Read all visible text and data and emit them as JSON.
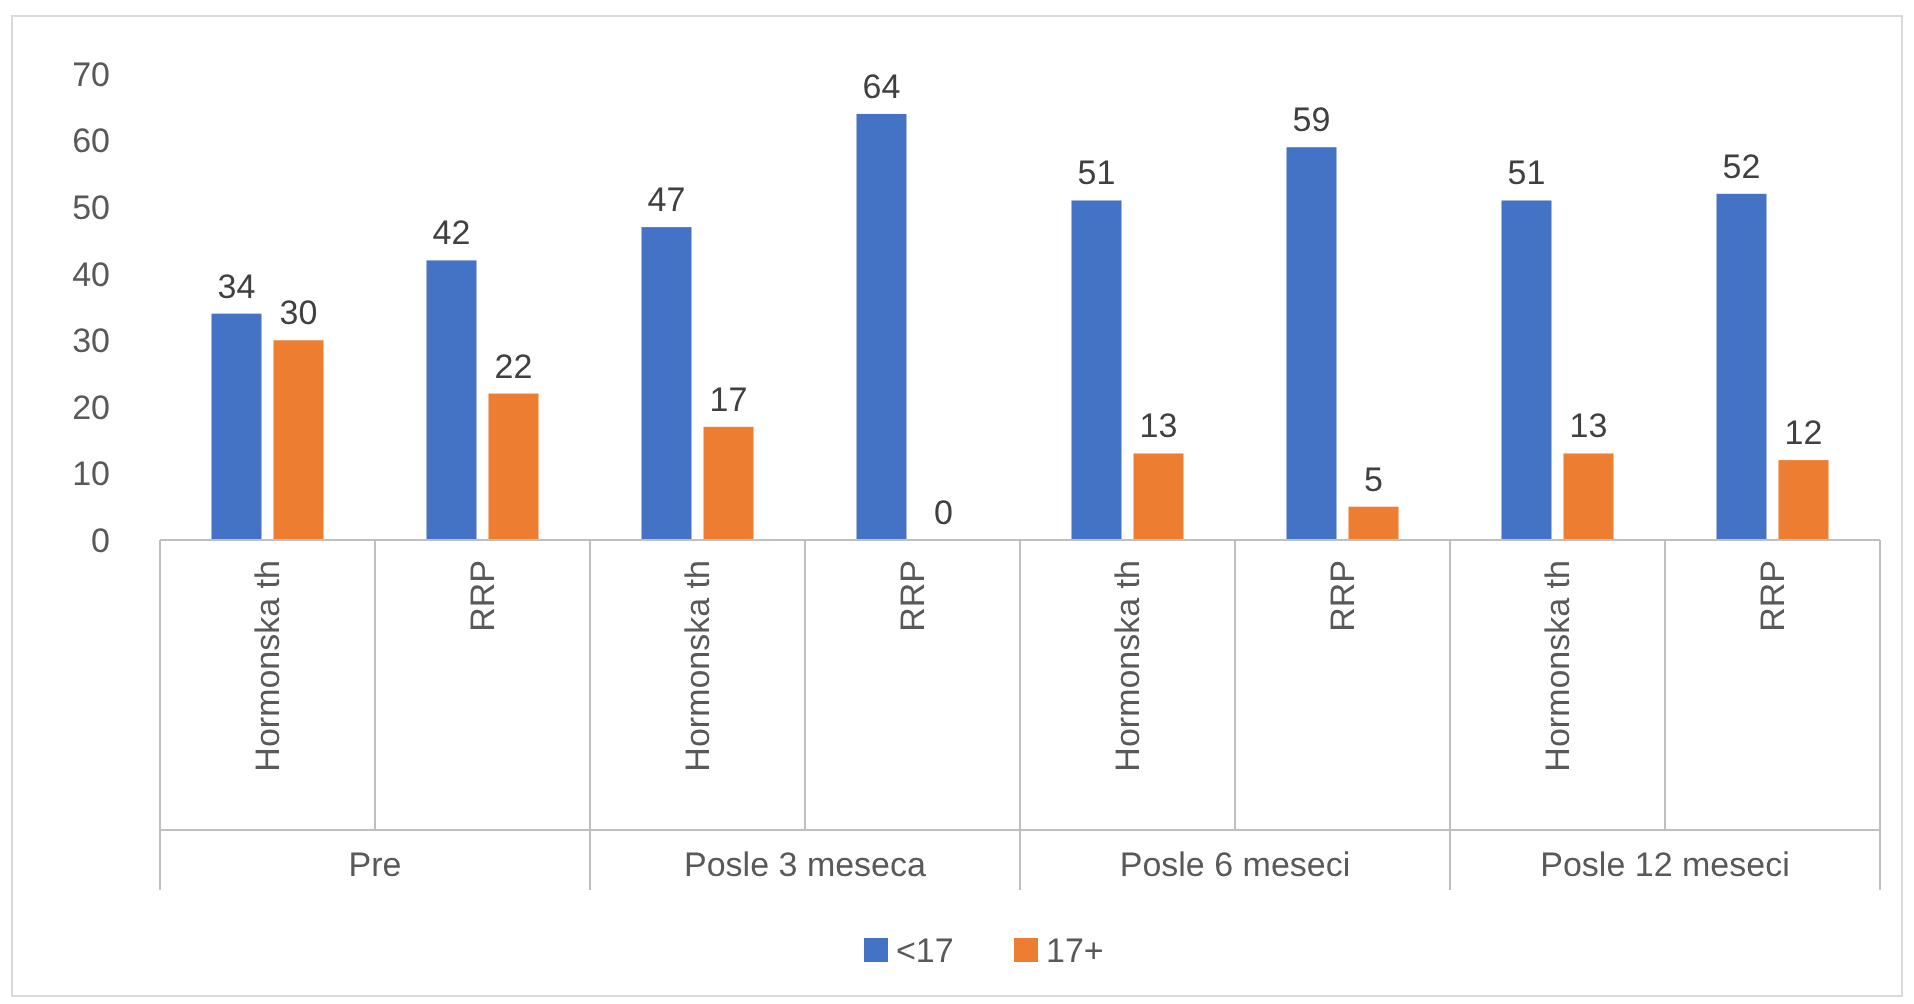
{
  "chart_data": {
    "type": "bar",
    "categories": [
      "Hormonska th",
      "RRP",
      "Hormonska th",
      "RRP",
      "Hormonska th",
      "RRP",
      "Hormonska th",
      "RRP"
    ],
    "series": [
      {
        "name": "<17",
        "color": "#4472c4",
        "values": [
          34,
          42,
          47,
          64,
          51,
          59,
          51,
          52
        ]
      },
      {
        "name": "17+",
        "color": "#ed7d31",
        "values": [
          30,
          22,
          17,
          0,
          13,
          5,
          13,
          12
        ]
      }
    ],
    "ylim": [
      0,
      70
    ],
    "yticks": [
      0,
      10,
      20,
      30,
      40,
      50,
      60,
      70
    ],
    "data_labels": true,
    "legend": "bottom",
    "grid": false,
    "annotations": [
      "Pre",
      "Posle 3 meseca",
      "Posle 6 meseci",
      "Posle 12 meseci"
    ]
  }
}
